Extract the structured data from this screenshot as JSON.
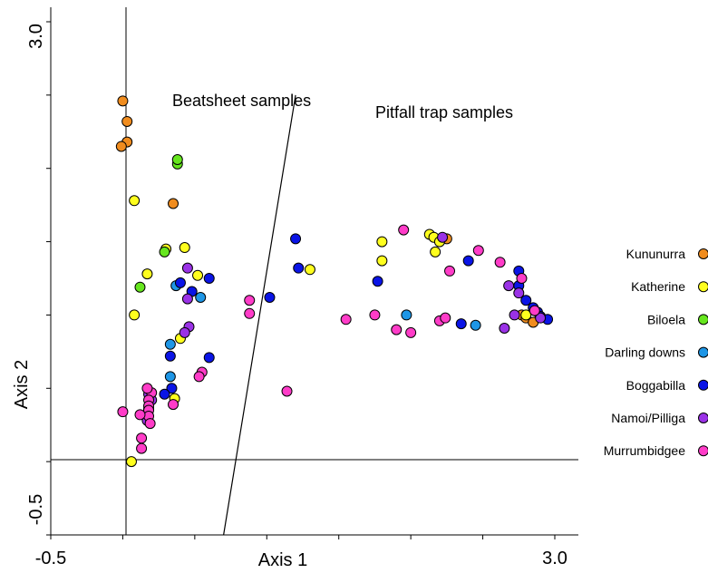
{
  "chart_data": {
    "type": "scatter",
    "xlabel": "Axis 1",
    "ylabel": "Axis 2",
    "xlim": [
      -0.5,
      3.0
    ],
    "ylim": [
      -0.5,
      3.0
    ],
    "x_tick_labels": [
      "-0.5",
      "3.0"
    ],
    "y_tick_labels": [
      "-0.5",
      "3.0"
    ],
    "annotations": [
      "Beatsheet samples",
      "Pitfall trap samples"
    ],
    "divider_line": [
      [
        0.7,
        -0.5
      ],
      [
        1.2,
        2.5
      ]
    ],
    "legend_position": "right",
    "series": [
      {
        "name": "Kununurra",
        "color": "#f08c1e",
        "points": [
          [
            0.0,
            2.46
          ],
          [
            0.03,
            2.32
          ],
          [
            0.03,
            2.18
          ],
          [
            -0.01,
            2.15
          ],
          [
            0.35,
            1.76
          ],
          [
            2.25,
            1.52
          ],
          [
            2.77,
            1.0
          ],
          [
            2.8,
            0.98
          ],
          [
            2.85,
            0.95
          ]
        ]
      },
      {
        "name": "Katherine",
        "color": "#ffff1e",
        "points": [
          [
            0.08,
            1.78
          ],
          [
            0.3,
            1.45
          ],
          [
            0.43,
            1.46
          ],
          [
            0.17,
            1.28
          ],
          [
            0.08,
            1.0
          ],
          [
            0.52,
            1.27
          ],
          [
            0.4,
            0.84
          ],
          [
            0.36,
            0.43
          ],
          [
            1.3,
            1.31
          ],
          [
            2.13,
            1.55
          ],
          [
            2.16,
            1.53
          ],
          [
            2.2,
            1.5
          ],
          [
            1.8,
            1.5
          ],
          [
            2.17,
            1.43
          ],
          [
            1.8,
            1.37
          ],
          [
            2.8,
            1.0
          ],
          [
            0.06,
            0.0
          ]
        ]
      },
      {
        "name": "Biloela",
        "color": "#66e61e",
        "points": [
          [
            0.38,
            2.03
          ],
          [
            0.38,
            2.06
          ],
          [
            0.29,
            1.43
          ],
          [
            0.12,
            1.19
          ]
        ]
      },
      {
        "name": "Darling downs",
        "color": "#1e96e6",
        "points": [
          [
            0.37,
            1.2
          ],
          [
            0.54,
            1.12
          ],
          [
            0.33,
            0.8
          ],
          [
            0.33,
            0.58
          ],
          [
            1.97,
            1.0
          ],
          [
            2.45,
            0.93
          ]
        ]
      },
      {
        "name": "Boggabilla",
        "color": "#0a14e6",
        "points": [
          [
            0.4,
            1.22
          ],
          [
            0.48,
            1.16
          ],
          [
            0.6,
            1.25
          ],
          [
            0.6,
            0.71
          ],
          [
            0.33,
            0.72
          ],
          [
            0.34,
            0.5
          ],
          [
            0.29,
            0.46
          ],
          [
            1.02,
            1.12
          ],
          [
            1.2,
            1.52
          ],
          [
            1.22,
            1.32
          ],
          [
            1.77,
            1.23
          ],
          [
            2.4,
            1.37
          ],
          [
            2.75,
            1.3
          ],
          [
            2.75,
            1.2
          ],
          [
            2.8,
            1.1
          ],
          [
            2.85,
            1.05
          ],
          [
            2.88,
            1.02
          ],
          [
            2.9,
            0.99
          ],
          [
            2.95,
            0.97
          ],
          [
            2.35,
            0.94
          ]
        ]
      },
      {
        "name": "Namoi/Pilliga",
        "color": "#9a32e6",
        "points": [
          [
            0.45,
            1.32
          ],
          [
            0.45,
            1.11
          ],
          [
            0.46,
            0.92
          ],
          [
            0.43,
            0.88
          ],
          [
            0.18,
            0.46
          ],
          [
            0.2,
            0.42
          ],
          [
            0.18,
            0.36
          ],
          [
            0.17,
            0.28
          ],
          [
            2.22,
            1.53
          ],
          [
            2.72,
            1.0
          ],
          [
            2.68,
            1.2
          ],
          [
            2.75,
            1.15
          ],
          [
            2.65,
            0.91
          ],
          [
            2.9,
            0.98
          ]
        ]
      },
      {
        "name": "Murrumbidgee",
        "color": "#ff3cc8",
        "points": [
          [
            0.88,
            1.1
          ],
          [
            0.88,
            1.01
          ],
          [
            1.14,
            0.48
          ],
          [
            0.55,
            0.61
          ],
          [
            0.53,
            0.58
          ],
          [
            0.35,
            0.39
          ],
          [
            0.2,
            0.47
          ],
          [
            0.17,
            0.5
          ],
          [
            0.18,
            0.42
          ],
          [
            0.18,
            0.38
          ],
          [
            0.18,
            0.35
          ],
          [
            0.18,
            0.31
          ],
          [
            0.19,
            0.26
          ],
          [
            0.0,
            0.34
          ],
          [
            0.12,
            0.32
          ],
          [
            0.13,
            0.16
          ],
          [
            0.13,
            0.09
          ],
          [
            1.95,
            1.58
          ],
          [
            2.47,
            1.44
          ],
          [
            2.62,
            1.36
          ],
          [
            2.27,
            1.3
          ],
          [
            2.77,
            1.25
          ],
          [
            2.86,
            1.03
          ],
          [
            1.55,
            0.97
          ],
          [
            1.75,
            1.0
          ],
          [
            1.9,
            0.9
          ],
          [
            2.0,
            0.88
          ],
          [
            2.2,
            0.96
          ],
          [
            2.24,
            0.98
          ]
        ]
      }
    ]
  }
}
